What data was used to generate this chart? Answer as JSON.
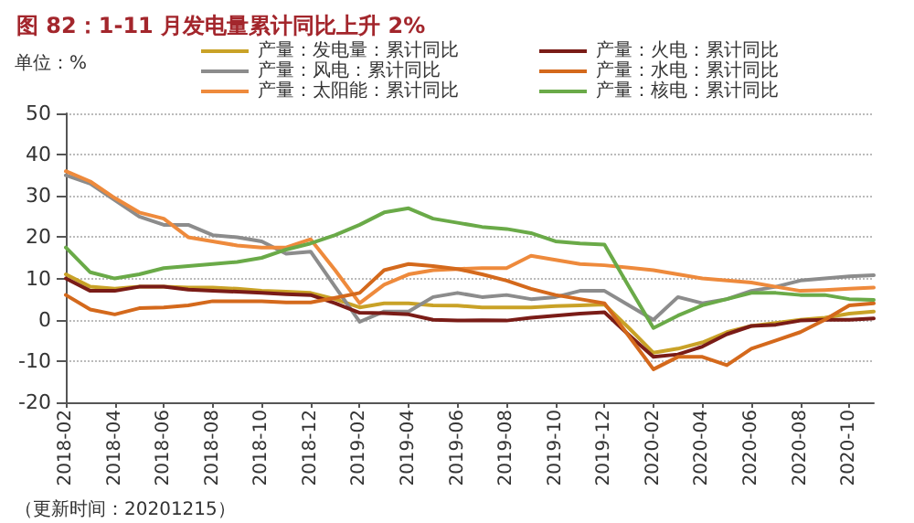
{
  "chart_data": {
    "type": "line",
    "title": "图 82：1-11 月发电量累计同比上升 2%",
    "ylabel": "单位：%",
    "annotations": [
      "（更新时间：20201215）"
    ],
    "categories": [
      "2018-02",
      null,
      "2018-04",
      null,
      "2018-06",
      null,
      "2018-08",
      null,
      "2018-10",
      null,
      "2018-12",
      null,
      "2019-02",
      null,
      "2019-04",
      null,
      "2019-06",
      null,
      "2019-08",
      null,
      "2019-10",
      null,
      "2019-12",
      null,
      "2020-02",
      null,
      "2020-04",
      null,
      "2020-06",
      null,
      "2020-08",
      null,
      "2020-10",
      null
    ],
    "series": [
      {
        "name": "产量：发电量：累计同比",
        "color": "#c9a227",
        "values": [
          11,
          8,
          7.5,
          8,
          8,
          7.8,
          7.8,
          7.5,
          7,
          6.8,
          6.5,
          5,
          3,
          4,
          4,
          3.5,
          3.4,
          3,
          3,
          3,
          3.3,
          3.5,
          3.7,
          -2,
          -8,
          -7,
          -5.5,
          -3,
          -1.5,
          -0.8,
          0,
          0.5,
          1.5,
          2
        ]
      },
      {
        "name": "产量：风电：累计同比",
        "color": "#8c8c8c",
        "values": [
          35,
          33,
          29,
          25,
          23,
          23,
          20.5,
          20,
          19,
          16,
          16.5,
          8,
          -0.5,
          2,
          2,
          5.5,
          6.5,
          5.5,
          6,
          5,
          5.5,
          7,
          7,
          3.5,
          0,
          5.5,
          4,
          5,
          7,
          8,
          9.5,
          10,
          10.5,
          10.8
        ]
      },
      {
        "name": "产量：太阳能：累计同比",
        "color": "#ee8a3c",
        "values": [
          36,
          33.5,
          29.5,
          26,
          24.5,
          20,
          19,
          18,
          17.5,
          17.5,
          19.5,
          12,
          4,
          8.5,
          11,
          12,
          12.3,
          12.5,
          12.5,
          15.5,
          14.5,
          13.5,
          13.2,
          12.6,
          12,
          11,
          10,
          9.5,
          9,
          8,
          7,
          7.2,
          7.5,
          7.8
        ]
      },
      {
        "name": "产量：火电：累计同比",
        "color": "#7a1c17",
        "values": [
          10,
          7,
          7,
          8,
          8,
          7.3,
          7,
          6.8,
          6.5,
          6.2,
          6,
          4,
          1.7,
          1.6,
          1.3,
          0,
          -0.2,
          -0.1,
          -0.2,
          0.5,
          1,
          1.5,
          1.8,
          -3.7,
          -9,
          -8.4,
          -6.5,
          -3.5,
          -1.5,
          -1.2,
          -0.2,
          0,
          0,
          0.3
        ]
      },
      {
        "name": "产量：水电：累计同比",
        "color": "#d4691c",
        "values": [
          6,
          2.5,
          1.3,
          2.8,
          3,
          3.5,
          4.5,
          4.5,
          4.5,
          4.2,
          4.2,
          5.3,
          6.5,
          12,
          13.5,
          13,
          12.3,
          11,
          9.5,
          7.5,
          6,
          5,
          4,
          -4,
          -12,
          -9,
          -9,
          -11,
          -7,
          -5,
          -3,
          0,
          3.5,
          4
        ]
      },
      {
        "name": "产量：核电：累计同比",
        "color": "#6aaa48",
        "values": [
          17.5,
          11.5,
          10,
          11,
          12.5,
          13,
          13.5,
          14,
          15,
          17,
          18.5,
          20.5,
          23,
          26,
          27,
          24.5,
          23.5,
          22.5,
          22,
          21,
          19,
          18.5,
          18.2,
          8,
          -2,
          1,
          3.5,
          5,
          6.5,
          6.5,
          6,
          6,
          5,
          4.8
        ]
      }
    ],
    "ylim": [
      -20,
      50
    ],
    "yticks": [
      -20,
      -10,
      0,
      10,
      20,
      30,
      40,
      50
    ],
    "grid": "y",
    "legend": "top",
    "marker": "none",
    "line_style": "solid"
  }
}
